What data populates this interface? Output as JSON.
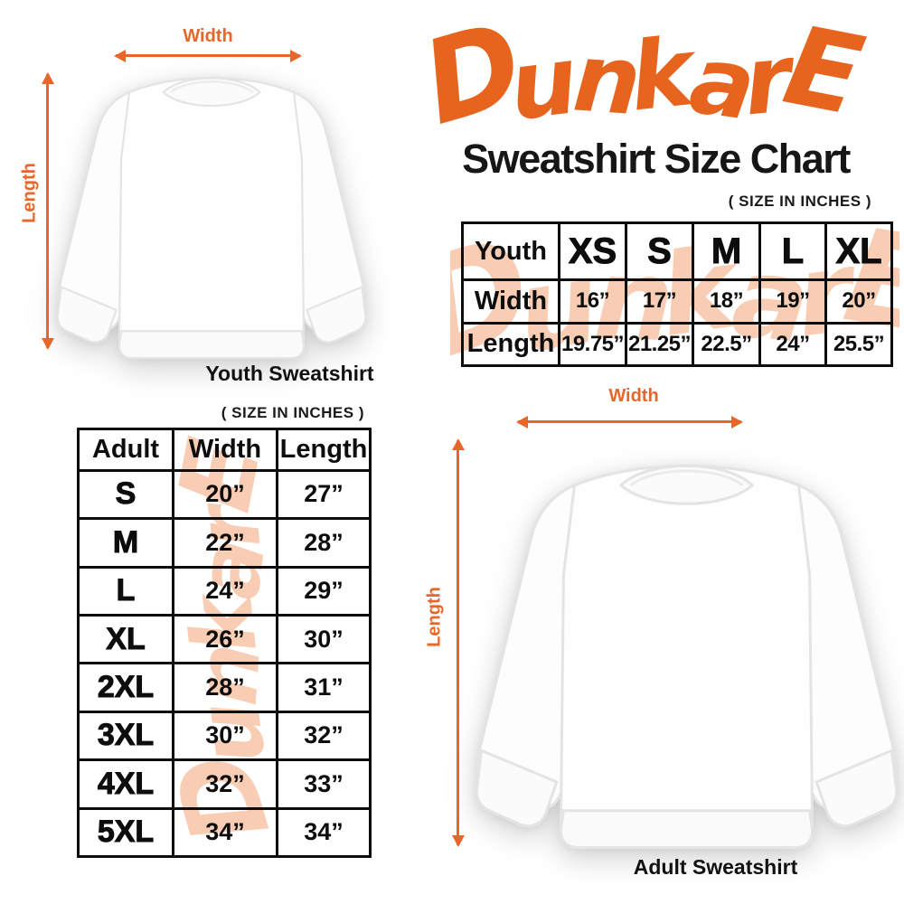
{
  "brand": {
    "name": "DunkarE",
    "logo_color": "#e7641f"
  },
  "header": {
    "title": "Sweatshirt Size Chart",
    "size_note": "( SIZE IN INCHES )"
  },
  "colors": {
    "accent_orange": "#e7672a",
    "watermark_peach": "#f8cdb4",
    "table_border": "#0d0d0d"
  },
  "watermark": {
    "text": "DunkarE"
  },
  "youth_section": {
    "width_label": "Width",
    "length_label": "Length",
    "caption": "Youth Sweatshirt",
    "table": {
      "header": [
        "Youth",
        "XS",
        "S",
        "M",
        "L",
        "XL"
      ],
      "rows": [
        [
          "Width",
          "16”",
          "17”",
          "18”",
          "19”",
          "20”"
        ],
        [
          "Length",
          "19.75”",
          "21.25”",
          "22.5”",
          "24”",
          "25.5”"
        ]
      ]
    }
  },
  "adult_section": {
    "size_note": "( SIZE IN INCHES )",
    "width_label": "Width",
    "length_label": "Length",
    "caption": "Adult Sweatshirt",
    "table": {
      "header": [
        "Adult",
        "Width",
        "Length"
      ],
      "rows": [
        [
          "S",
          "20”",
          "27”"
        ],
        [
          "M",
          "22”",
          "28”"
        ],
        [
          "L",
          "24”",
          "29”"
        ],
        [
          "XL",
          "26”",
          "30”"
        ],
        [
          "2XL",
          "28”",
          "31”"
        ],
        [
          "3XL",
          "30”",
          "32”"
        ],
        [
          "4XL",
          "32”",
          "33”"
        ],
        [
          "5XL",
          "34”",
          "34”"
        ]
      ]
    }
  }
}
